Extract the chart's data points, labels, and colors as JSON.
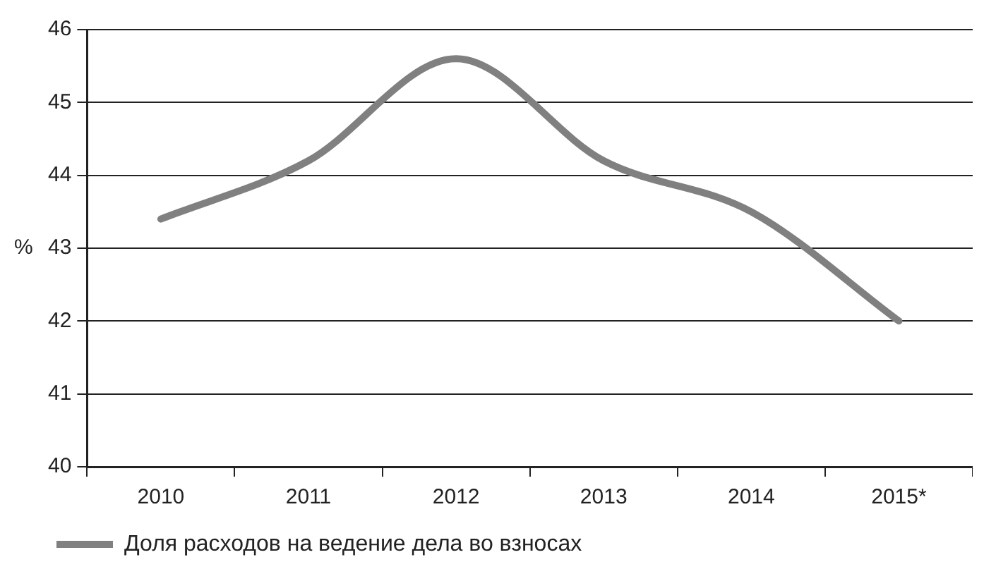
{
  "chart_data": {
    "type": "line",
    "ylabel": "%",
    "categories": [
      "2010",
      "2011",
      "2012",
      "2013",
      "2014",
      "2015*"
    ],
    "series": [
      {
        "name": "Доля расходов на ведение дела во взносах",
        "color": "#808080",
        "values": [
          43.4,
          44.2,
          45.6,
          44.2,
          43.5,
          42.0
        ]
      }
    ],
    "ylim": [
      40,
      46
    ],
    "yticks": [
      40,
      41,
      42,
      43,
      44,
      45,
      46
    ],
    "grid": "y",
    "legend": "bottom left",
    "marker": "none",
    "line_style": "solid"
  }
}
